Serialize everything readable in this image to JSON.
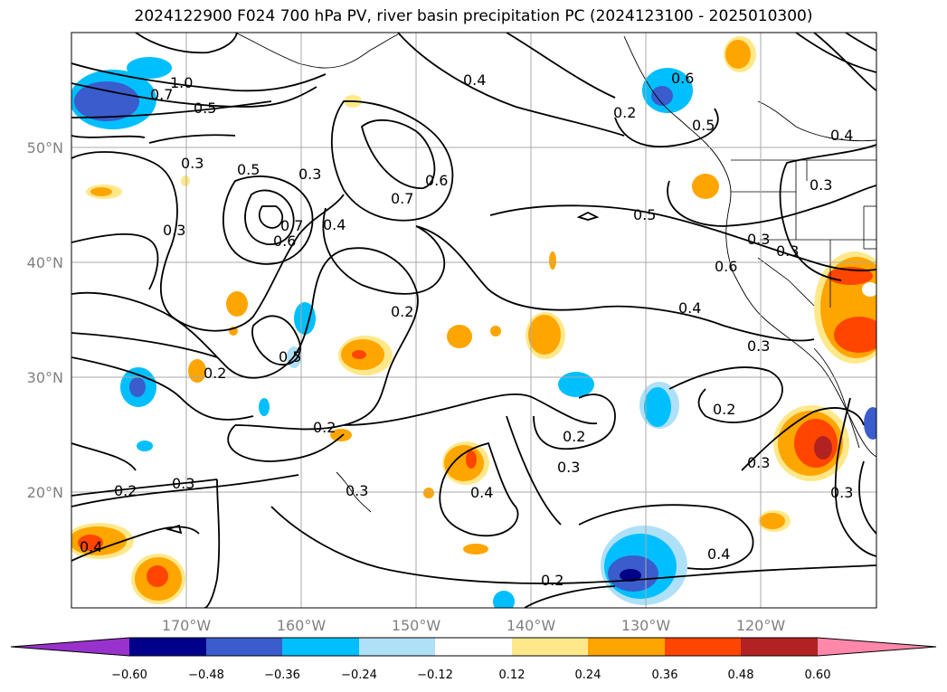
{
  "title": "2024122900 F024 700 hPa PV, river basin precipitation PC (2024123100 - 2025010300)",
  "map": {
    "lon_ticks": [
      "170°W",
      "160°W",
      "150°W",
      "140°W",
      "130°W",
      "120°W"
    ],
    "lat_ticks": [
      "50°N",
      "40°N",
      "30°N",
      "20°N"
    ],
    "contour_labels": [
      "1.0",
      "0.7",
      "0.5",
      "0.4",
      "0.6",
      "0.5",
      "0.3",
      "0.5",
      "0.3",
      "0.6",
      "0.7",
      "0.3",
      "0.7",
      "0.6",
      "0.4",
      "0.2",
      "0.5",
      "0.3",
      "0.2",
      "0.5",
      "0.4",
      "0.3",
      "0.6",
      "0.3",
      "0.2",
      "0.2",
      "0.3",
      "0.2",
      "0.3",
      "0.4",
      "0.2",
      "0.3",
      "0.4",
      "0.4",
      "0.4",
      "0.2",
      "0.3",
      "0.3",
      "0.2",
      "0.3"
    ],
    "fill_colors": {
      "neg_060": "#000088",
      "neg_048": "#3a5ccc",
      "neg_036": "#00bfff",
      "neg_024": "#aee0f8",
      "pos_024": "#ffe88a",
      "pos_036": "#ffa500",
      "pos_048": "#ff4500",
      "pos_060": "#b22222"
    }
  },
  "colorbar": {
    "labels": [
      "−0.60",
      "−0.48",
      "−0.36",
      "−0.24",
      "−0.12",
      "0.12",
      "0.24",
      "0.36",
      "0.48",
      "0.60"
    ],
    "colors": [
      "#9932cc",
      "#00008b",
      "#3a5ccc",
      "#00bfff",
      "#aee0f8",
      "#ffffff",
      "#ffe88a",
      "#ffa500",
      "#ff4500",
      "#b22222",
      "#ff88aa"
    ]
  }
}
